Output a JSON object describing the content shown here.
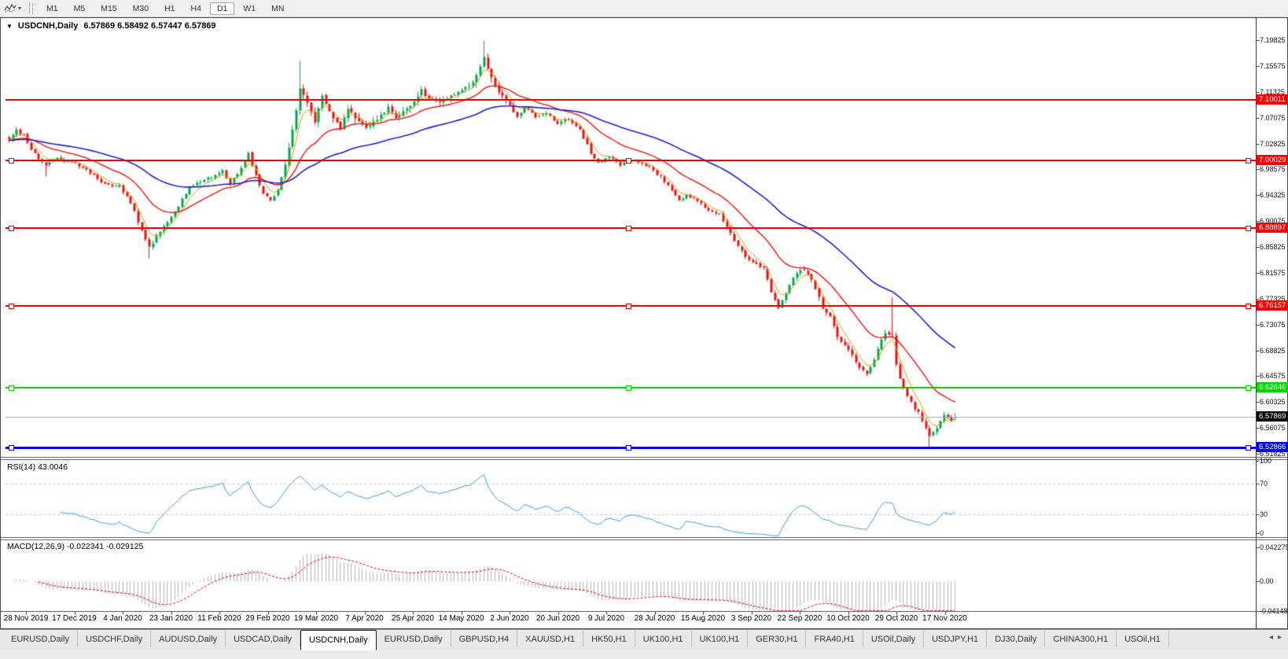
{
  "toolbar": {
    "timeframes": [
      {
        "label": "M1",
        "active": false
      },
      {
        "label": "M5",
        "active": false
      },
      {
        "label": "M15",
        "active": false
      },
      {
        "label": "M30",
        "active": false
      },
      {
        "label": "H1",
        "active": false
      },
      {
        "label": "H4",
        "active": false
      },
      {
        "label": "D1",
        "active": true
      },
      {
        "label": "W1",
        "active": false
      },
      {
        "label": "MN",
        "active": false
      }
    ],
    "caret": "▾"
  },
  "chart": {
    "menu_icon": "▼",
    "title_symbol": "USDCNH,Daily",
    "title_ohlc": "6.57869 6.58492 6.57447 6.57869"
  },
  "chart_data": {
    "type": "candlestick",
    "symbol": "USDCNH",
    "timeframe": "Daily",
    "open": 6.57869,
    "high": 6.58492,
    "low": 6.57447,
    "close": 6.57869,
    "price_range": [
      6.51825,
      7.19825
    ],
    "price_axis_ticks": [
      7.19825,
      7.15575,
      7.11325,
      7.07075,
      7.02825,
      6.98575,
      6.94325,
      6.90075,
      6.85825,
      6.81575,
      6.77325,
      6.73075,
      6.68825,
      6.64575,
      6.60325,
      6.56075,
      6.51825
    ],
    "date_labels": [
      "28 Nov 2019",
      "17 Dec 2019",
      "4 Jan 2020",
      "23 Jan 2020",
      "11 Feb 2020",
      "29 Feb 2020",
      "19 Mar 2020",
      "7 Apr 2020",
      "25 Apr 2020",
      "14 May 2020",
      "2 Jun 2020",
      "20 Jun 2020",
      "9 Jul 2020",
      "28 Jul 2020",
      "15 Aug 2020",
      "3 Sep 2020",
      "22 Sep 2020",
      "10 Oct 2020",
      "29 Oct 2020",
      "17 Nov 2020"
    ],
    "levels": [
      {
        "label": "7.10011",
        "price": 7.10011,
        "color": "#f40000",
        "width": 2,
        "selected": false
      },
      {
        "label": "7.00029",
        "price": 7.00029,
        "color": "#f40000",
        "width": 2,
        "selected": true
      },
      {
        "label": "6.88897",
        "price": 6.88897,
        "color": "#f40000",
        "width": 2,
        "selected": true
      },
      {
        "label": "6.76157",
        "price": 6.76157,
        "color": "#f40000",
        "width": 2,
        "selected": true
      },
      {
        "label": "6.62646",
        "price": 6.62646,
        "color": "#00d800",
        "width": 2,
        "selected": true
      },
      {
        "label": "6.52866",
        "price": 6.52866,
        "color": "#0000f0",
        "width": 3,
        "selected": true
      }
    ],
    "current_price": {
      "label": "6.57869",
      "price": 6.57869,
      "tag_bg": "#000000",
      "line_color": "#b4b4b4"
    },
    "num_candles": 258,
    "candle_colors": {
      "up": "#00a651",
      "down": "#e81010"
    },
    "close_anchors": [
      [
        0,
        7.034
      ],
      [
        2,
        7.051
      ],
      [
        4,
        7.042
      ],
      [
        6,
        7.021
      ],
      [
        8,
        7.001
      ],
      [
        10,
        6.994
      ],
      [
        13,
        7.004
      ],
      [
        17,
        7.0
      ],
      [
        20,
        6.989
      ],
      [
        23,
        6.976
      ],
      [
        26,
        6.963
      ],
      [
        30,
        6.959
      ],
      [
        33,
        6.931
      ],
      [
        36,
        6.886
      ],
      [
        38,
        6.857
      ],
      [
        40,
        6.876
      ],
      [
        43,
        6.899
      ],
      [
        46,
        6.926
      ],
      [
        49,
        6.956
      ],
      [
        52,
        6.968
      ],
      [
        55,
        6.972
      ],
      [
        58,
        6.986
      ],
      [
        60,
        6.961
      ],
      [
        63,
        6.989
      ],
      [
        65,
        7.012
      ],
      [
        67,
        6.976
      ],
      [
        69,
        6.946
      ],
      [
        71,
        6.934
      ],
      [
        73,
        6.953
      ],
      [
        75,
        6.996
      ],
      [
        77,
        7.05
      ],
      [
        79,
        7.118
      ],
      [
        81,
        7.096
      ],
      [
        83,
        7.064
      ],
      [
        85,
        7.108
      ],
      [
        87,
        7.082
      ],
      [
        90,
        7.053
      ],
      [
        92,
        7.088
      ],
      [
        94,
        7.072
      ],
      [
        97,
        7.056
      ],
      [
        100,
        7.068
      ],
      [
        103,
        7.088
      ],
      [
        105,
        7.072
      ],
      [
        107,
        7.082
      ],
      [
        110,
        7.098
      ],
      [
        112,
        7.116
      ],
      [
        114,
        7.102
      ],
      [
        117,
        7.098
      ],
      [
        120,
        7.108
      ],
      [
        123,
        7.117
      ],
      [
        126,
        7.128
      ],
      [
        128,
        7.154
      ],
      [
        129,
        7.172
      ],
      [
        131,
        7.136
      ],
      [
        133,
        7.112
      ],
      [
        136,
        7.092
      ],
      [
        138,
        7.073
      ],
      [
        140,
        7.088
      ],
      [
        143,
        7.073
      ],
      [
        146,
        7.079
      ],
      [
        149,
        7.063
      ],
      [
        152,
        7.069
      ],
      [
        155,
        7.053
      ],
      [
        158,
        7.013
      ],
      [
        160,
        6.998
      ],
      [
        163,
        7.006
      ],
      [
        166,
        6.993
      ],
      [
        169,
        7.003
      ],
      [
        171,
        6.997
      ],
      [
        174,
        6.989
      ],
      [
        177,
        6.973
      ],
      [
        180,
        6.953
      ],
      [
        182,
        6.933
      ],
      [
        184,
        6.946
      ],
      [
        187,
        6.933
      ],
      [
        190,
        6.921
      ],
      [
        193,
        6.913
      ],
      [
        196,
        6.883
      ],
      [
        198,
        6.859
      ],
      [
        200,
        6.843
      ],
      [
        203,
        6.831
      ],
      [
        205,
        6.823
      ],
      [
        207,
        6.786
      ],
      [
        209,
        6.759
      ],
      [
        211,
        6.783
      ],
      [
        213,
        6.809
      ],
      [
        215,
        6.823
      ],
      [
        217,
        6.813
      ],
      [
        219,
        6.793
      ],
      [
        221,
        6.756
      ],
      [
        223,
        6.743
      ],
      [
        225,
        6.713
      ],
      [
        227,
        6.698
      ],
      [
        229,
        6.679
      ],
      [
        231,
        6.663
      ],
      [
        233,
        6.649
      ],
      [
        235,
        6.673
      ],
      [
        236,
        6.693
      ],
      [
        238,
        6.719
      ],
      [
        240,
        6.713
      ],
      [
        241,
        6.663
      ],
      [
        243,
        6.626
      ],
      [
        245,
        6.603
      ],
      [
        247,
        6.586
      ],
      [
        249,
        6.563
      ],
      [
        250,
        6.549
      ],
      [
        252,
        6.563
      ],
      [
        254,
        6.583
      ],
      [
        256,
        6.573
      ],
      [
        257,
        6.57869
      ]
    ],
    "wick_overrides": [
      {
        "i": 10,
        "low": 6.975
      },
      {
        "i": 38,
        "low": 6.8402
      },
      {
        "i": 79,
        "high": 7.165
      },
      {
        "i": 129,
        "high": 7.1982
      },
      {
        "i": 240,
        "high": 6.7759
      },
      {
        "i": 250,
        "low": 6.5289
      }
    ],
    "moving_averages": [
      {
        "period": 5,
        "color": "#c8a000",
        "width": 1
      },
      {
        "period": 20,
        "color": "#ff0000",
        "width": 1.3
      },
      {
        "period": 55,
        "color": "#2020c8",
        "width": 1.6
      }
    ],
    "rsi": {
      "label": "RSI(14) 43.0046",
      "period": 14,
      "value": 43.0046,
      "color": "#3e9be6",
      "ticks": [
        {
          "label": "100",
          "value": 100
        },
        {
          "label": "70",
          "value": 70
        },
        {
          "label": "30",
          "value": 30
        },
        {
          "label": "0",
          "value": 0
        }
      ],
      "dashed_levels": [
        70,
        30
      ]
    },
    "macd": {
      "label": "MACD(12,26,9) -0.022341 -0.029125",
      "fast": 12,
      "slow": 26,
      "signal": 9,
      "values": [
        -0.022341,
        -0.029125
      ],
      "hist_color": "#b5b5b5",
      "signal_color": "#e00000",
      "ticks": [
        {
          "label": "0.042275",
          "value": 0.042275
        },
        {
          "label": "0.00",
          "value": 0
        },
        {
          "label": "-0.04148",
          "value": -0.04148
        }
      ]
    }
  },
  "tabs": {
    "items": [
      {
        "label": "EURUSD,Daily",
        "active": false
      },
      {
        "label": "USDCHF,Daily",
        "active": false
      },
      {
        "label": "AUDUSD,Daily",
        "active": false
      },
      {
        "label": "USDCAD,Daily",
        "active": false
      },
      {
        "label": "USDCNH,Daily",
        "active": true
      },
      {
        "label": "EURUSD,Daily",
        "active": false
      },
      {
        "label": "GBPUSD,H4",
        "active": false
      },
      {
        "label": "XAUUSD,H1",
        "active": false
      },
      {
        "label": "HK50,H1",
        "active": false
      },
      {
        "label": "UK100,H1",
        "active": false
      },
      {
        "label": "UK100,H1",
        "active": false
      },
      {
        "label": "GER30,H1",
        "active": false
      },
      {
        "label": "FRA40,H1",
        "active": false
      },
      {
        "label": "USOil,Daily",
        "active": false
      },
      {
        "label": "USDJPY,H1",
        "active": false
      },
      {
        "label": "DJ30,Daily",
        "active": false
      },
      {
        "label": "CHINA300,H1",
        "active": false
      },
      {
        "label": "USOil,H1",
        "active": false
      }
    ],
    "scroll_left": "◂",
    "scroll_right": "▸"
  }
}
